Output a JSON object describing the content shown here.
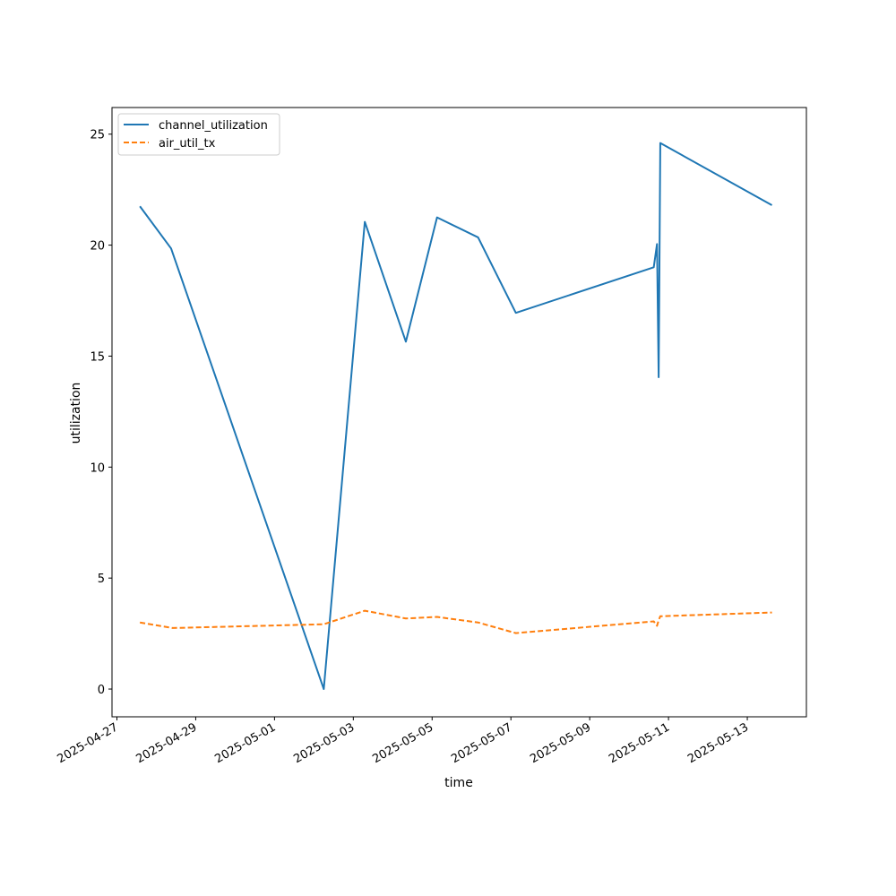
{
  "chart_data": {
    "type": "line",
    "title": "",
    "xlabel": "time",
    "ylabel": "utilization",
    "grid": false,
    "legend_position": "top-left",
    "xlim": [
      "2025-04-26T21:00",
      "2025-05-14T12:00"
    ],
    "ylim": [
      -1.25,
      26.2
    ],
    "x_ticks": [
      "2025-04-27",
      "2025-04-29",
      "2025-05-01",
      "2025-05-03",
      "2025-05-05",
      "2025-05-07",
      "2025-05-09",
      "2025-05-11",
      "2025-05-13"
    ],
    "y_ticks": [
      0,
      5,
      10,
      15,
      20,
      25
    ],
    "series": [
      {
        "name": "channel_utilization",
        "color": "#1f77b4",
        "dash": "solid",
        "points": [
          {
            "x": "2025-04-27T14:00",
            "y": 21.75
          },
          {
            "x": "2025-04-28T09:00",
            "y": 19.85
          },
          {
            "x": "2025-05-02T06:00",
            "y": 0.0
          },
          {
            "x": "2025-05-03T07:00",
            "y": 21.05
          },
          {
            "x": "2025-05-04T08:00",
            "y": 15.65
          },
          {
            "x": "2025-05-05T03:00",
            "y": 21.25
          },
          {
            "x": "2025-05-06T04:00",
            "y": 20.35
          },
          {
            "x": "2025-05-07T03:00",
            "y": 16.95
          },
          {
            "x": "2025-05-10T15:00",
            "y": 19.0
          },
          {
            "x": "2025-05-10T17:00",
            "y": 20.05
          },
          {
            "x": "2025-05-10T18:00",
            "y": 14.05
          },
          {
            "x": "2025-05-10T19:00",
            "y": 24.6
          },
          {
            "x": "2025-05-13T15:00",
            "y": 21.8
          }
        ]
      },
      {
        "name": "air_util_tx",
        "color": "#ff7f0e",
        "dash": "dashed",
        "points": [
          {
            "x": "2025-04-27T14:00",
            "y": 3.0
          },
          {
            "x": "2025-04-28T10:00",
            "y": 2.75
          },
          {
            "x": "2025-05-02T06:00",
            "y": 2.92
          },
          {
            "x": "2025-05-03T07:00",
            "y": 3.53
          },
          {
            "x": "2025-05-04T08:00",
            "y": 3.18
          },
          {
            "x": "2025-05-05T03:00",
            "y": 3.25
          },
          {
            "x": "2025-05-06T04:00",
            "y": 3.0
          },
          {
            "x": "2025-05-07T03:00",
            "y": 2.52
          },
          {
            "x": "2025-05-10T15:00",
            "y": 3.05
          },
          {
            "x": "2025-05-10T17:00",
            "y": 2.85
          },
          {
            "x": "2025-05-10T18:00",
            "y": 3.1
          },
          {
            "x": "2025-05-10T19:00",
            "y": 3.28
          },
          {
            "x": "2025-05-13T15:00",
            "y": 3.45
          }
        ]
      }
    ]
  }
}
